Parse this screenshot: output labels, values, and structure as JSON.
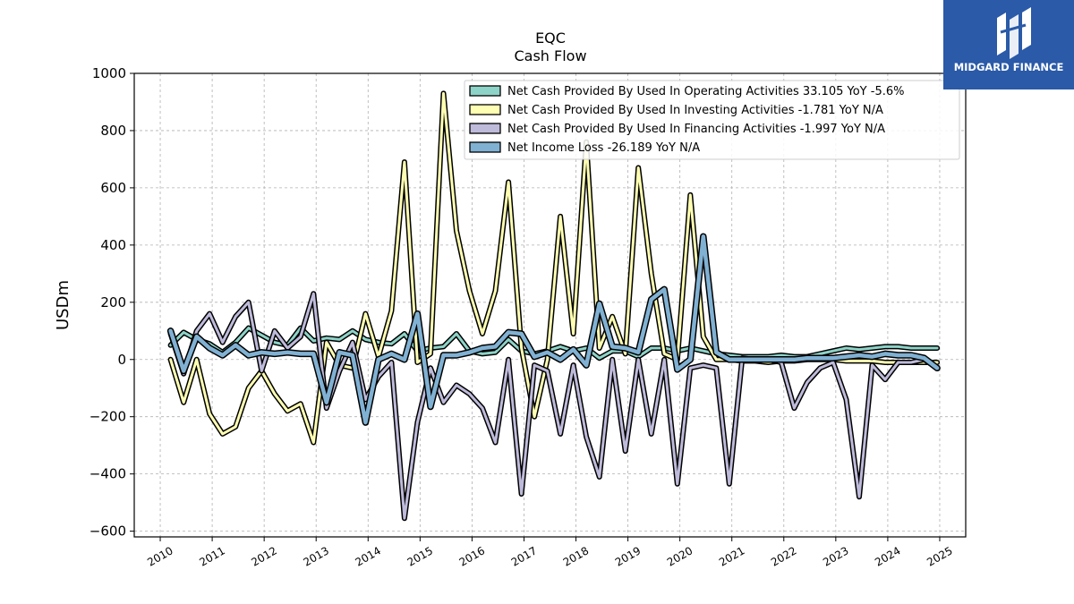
{
  "logo": {
    "text": "MIDGARD FINANCE",
    "color": "#2a5aa8"
  },
  "chart_data": {
    "type": "line",
    "title": "EQC",
    "subtitle": "Cash Flow",
    "ylabel": "USDm",
    "xlabel": "",
    "ylim": [
      -620,
      1000
    ],
    "xlim": [
      2009.5,
      2025.5
    ],
    "yticks": [
      -600,
      -400,
      -200,
      0,
      200,
      400,
      600,
      800,
      1000
    ],
    "ytick_labels": [
      "−600",
      "−400",
      "−200",
      "0",
      "200",
      "400",
      "600",
      "800",
      "1000"
    ],
    "xticks": [
      2010,
      2011,
      2012,
      2013,
      2014,
      2015,
      2016,
      2017,
      2018,
      2019,
      2020,
      2021,
      2022,
      2023,
      2024,
      2025
    ],
    "xtick_labels": [
      "2010",
      "2011",
      "2012",
      "2013",
      "2014",
      "2015",
      "2016",
      "2017",
      "2018",
      "2019",
      "2020",
      "2021",
      "2022",
      "2023",
      "2024",
      "2025"
    ],
    "grid": true,
    "legend_position": "top-right",
    "series": [
      {
        "name": "Net Cash Provided By Used In Operating Activities",
        "legend_label": "Net Cash Provided By Used In Operating Activities  33.105 YoY -5.6%",
        "color": "#8dd3c7",
        "width": 3,
        "x": [
          2010.2,
          2010.45,
          2010.7,
          2010.95,
          2011.2,
          2011.45,
          2011.7,
          2011.95,
          2012.2,
          2012.45,
          2012.7,
          2012.95,
          2013.2,
          2013.45,
          2013.7,
          2013.95,
          2014.2,
          2014.45,
          2014.7,
          2014.95,
          2015.2,
          2015.45,
          2015.7,
          2015.95,
          2016.2,
          2016.45,
          2016.7,
          2016.95,
          2017.2,
          2017.45,
          2017.7,
          2017.95,
          2018.2,
          2018.45,
          2018.7,
          2018.95,
          2019.2,
          2019.45,
          2019.7,
          2019.95,
          2020.2,
          2020.45,
          2020.7,
          2020.95,
          2021.2,
          2021.45,
          2021.7,
          2021.95,
          2022.2,
          2022.45,
          2022.7,
          2022.95,
          2023.2,
          2023.45,
          2023.7,
          2023.95,
          2024.2,
          2024.45,
          2024.7,
          2024.95
        ],
        "y": [
          50,
          95,
          70,
          55,
          25,
          60,
          110,
          85,
          60,
          50,
          110,
          65,
          75,
          70,
          100,
          70,
          60,
          55,
          90,
          30,
          40,
          45,
          90,
          30,
          20,
          25,
          70,
          30,
          20,
          30,
          45,
          30,
          40,
          5,
          30,
          30,
          10,
          40,
          40,
          30,
          40,
          30,
          20,
          15,
          10,
          10,
          10,
          15,
          10,
          10,
          20,
          30,
          40,
          35,
          40,
          45,
          45,
          40,
          40,
          40
        ]
      },
      {
        "name": "Net Cash Provided By Used In Investing Activities",
        "legend_label": "Net Cash Provided By Used In Investing Activities  -1.781 YoY N/A",
        "color": "#ffffb3",
        "width": 3,
        "x": [
          2010.2,
          2010.45,
          2010.7,
          2010.95,
          2011.2,
          2011.45,
          2011.7,
          2011.95,
          2012.2,
          2012.45,
          2012.7,
          2012.95,
          2013.2,
          2013.45,
          2013.7,
          2013.95,
          2014.2,
          2014.45,
          2014.7,
          2014.95,
          2015.2,
          2015.45,
          2015.7,
          2015.95,
          2016.2,
          2016.45,
          2016.7,
          2016.95,
          2017.2,
          2017.45,
          2017.7,
          2017.95,
          2018.2,
          2018.45,
          2018.7,
          2018.95,
          2019.2,
          2019.45,
          2019.7,
          2019.95,
          2020.2,
          2020.45,
          2020.7,
          2020.95,
          2021.2,
          2021.45,
          2021.7,
          2021.95,
          2022.2,
          2022.45,
          2022.7,
          2022.95,
          2023.2,
          2023.45,
          2023.7,
          2023.95,
          2024.2,
          2024.45,
          2024.7,
          2024.95
        ],
        "y": [
          0,
          -150,
          0,
          -190,
          -260,
          -235,
          -100,
          -40,
          -120,
          -180,
          -155,
          -290,
          60,
          -20,
          -30,
          160,
          10,
          170,
          690,
          -10,
          20,
          930,
          450,
          240,
          90,
          240,
          620,
          40,
          -200,
          0,
          500,
          90,
          760,
          40,
          150,
          20,
          670,
          300,
          20,
          0,
          575,
          80,
          0,
          0,
          -5,
          -5,
          -10,
          -5,
          -5,
          0,
          0,
          0,
          -5,
          -5,
          -5,
          -10,
          -10,
          -10,
          -10,
          -10
        ]
      },
      {
        "name": "Net Cash Provided By Used In Financing Activities",
        "legend_label": "Net Cash Provided By Used In Financing Activities  -1.997 YoY N/A",
        "color": "#bebada",
        "width": 3,
        "x": [
          2010.2,
          2010.45,
          2010.7,
          2010.95,
          2011.2,
          2011.45,
          2011.7,
          2011.95,
          2012.2,
          2012.45,
          2012.7,
          2012.95,
          2013.2,
          2013.45,
          2013.7,
          2013.95,
          2014.2,
          2014.45,
          2014.7,
          2014.95,
          2015.2,
          2015.45,
          2015.7,
          2015.95,
          2016.2,
          2016.45,
          2016.7,
          2016.95,
          2017.2,
          2017.45,
          2017.7,
          2017.95,
          2018.2,
          2018.45,
          2018.7,
          2018.95,
          2019.2,
          2019.45,
          2019.7,
          2019.95,
          2020.2,
          2020.45,
          2020.7,
          2020.95,
          2021.2,
          2021.45,
          2021.7,
          2021.95,
          2022.2,
          2022.45,
          2022.7,
          2022.95,
          2023.2,
          2023.45,
          2023.7,
          2023.95,
          2024.2,
          2024.45,
          2024.7,
          2024.95
        ],
        "y": [
          90,
          -50,
          100,
          160,
          60,
          150,
          200,
          -40,
          100,
          40,
          80,
          230,
          -170,
          -40,
          60,
          -140,
          -60,
          -10,
          -555,
          -220,
          -30,
          -150,
          -90,
          -120,
          -170,
          -290,
          0,
          -470,
          -20,
          -40,
          -260,
          -20,
          -270,
          -410,
          0,
          -320,
          0,
          -260,
          0,
          -435,
          -30,
          -20,
          -30,
          -435,
          5,
          0,
          0,
          -10,
          -170,
          -80,
          -30,
          -10,
          -140,
          -480,
          -20,
          -70,
          -10,
          -10,
          0,
          -30
        ]
      },
      {
        "name": "Net Income Loss",
        "legend_label": "Net Income Loss  -26.189 YoY N/A",
        "color": "#80b1d3",
        "width": 4.5,
        "x": [
          2010.2,
          2010.45,
          2010.7,
          2010.95,
          2011.2,
          2011.45,
          2011.7,
          2011.95,
          2012.2,
          2012.45,
          2012.7,
          2012.95,
          2013.2,
          2013.45,
          2013.7,
          2013.95,
          2014.2,
          2014.45,
          2014.7,
          2014.95,
          2015.2,
          2015.45,
          2015.7,
          2015.95,
          2016.2,
          2016.45,
          2016.7,
          2016.95,
          2017.2,
          2017.45,
          2017.7,
          2017.95,
          2018.2,
          2018.45,
          2018.7,
          2018.95,
          2019.2,
          2019.45,
          2019.7,
          2019.95,
          2020.2,
          2020.45,
          2020.7,
          2020.95,
          2021.2,
          2021.45,
          2021.7,
          2021.95,
          2022.2,
          2022.45,
          2022.7,
          2022.95,
          2023.2,
          2023.45,
          2023.7,
          2023.95,
          2024.2,
          2024.45,
          2024.7,
          2024.95
        ],
        "y": [
          100,
          -40,
          80,
          40,
          15,
          50,
          15,
          25,
          20,
          25,
          20,
          20,
          -150,
          25,
          15,
          -220,
          0,
          20,
          0,
          160,
          -165,
          15,
          15,
          25,
          40,
          45,
          95,
          90,
          10,
          25,
          0,
          35,
          -20,
          195,
          45,
          40,
          25,
          210,
          245,
          -35,
          0,
          430,
          25,
          0,
          0,
          0,
          0,
          0,
          0,
          5,
          5,
          5,
          10,
          15,
          10,
          20,
          15,
          15,
          5,
          -30
        ]
      }
    ]
  }
}
